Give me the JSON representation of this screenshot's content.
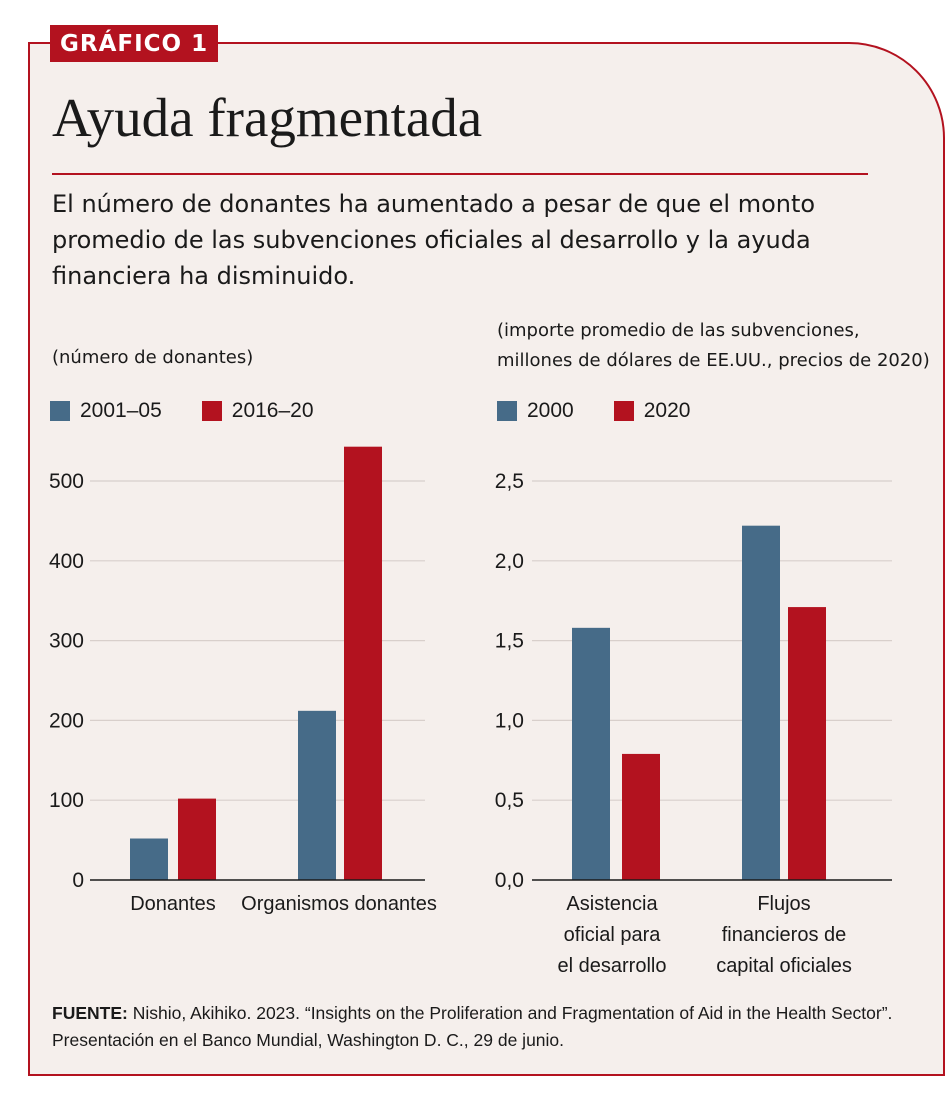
{
  "header": {
    "badge": "GRÁFICO 1",
    "title": "Ayuda fragmentada",
    "subtitle": "El número de donantes ha aumentado a pesar de que el monto promedio de las subvenciones oficiales al desarrollo y la ayuda financiera ha disminuido."
  },
  "colors": {
    "accent": "#b3121f",
    "series_a": "#466b88",
    "series_b": "#b3121f",
    "background": "#f5efec"
  },
  "chart_data": [
    {
      "type": "bar",
      "unit_note": "(número de donantes)",
      "categories": [
        [
          "Donantes"
        ],
        [
          "Organismos donantes"
        ]
      ],
      "series": [
        {
          "name": "2001–05",
          "color": "#466b88",
          "values": [
            52,
            212
          ]
        },
        {
          "name": "2016–20",
          "color": "#b3121f",
          "values": [
            102,
            543
          ]
        }
      ],
      "yticks": [
        "0",
        "100",
        "200",
        "300",
        "400",
        "500"
      ],
      "ylim": [
        0,
        550
      ],
      "grid": true,
      "legend": "top-left"
    },
    {
      "type": "bar",
      "unit_note": [
        "(importe promedio de las subvenciones,",
        "millones de dólares de EE.UU., precios de 2020)"
      ],
      "categories": [
        [
          "Asistencia",
          "oficial para",
          "el desarrollo"
        ],
        [
          "Flujos",
          "financieros de",
          "capital oficiales"
        ]
      ],
      "series": [
        {
          "name": "2000",
          "color": "#466b88",
          "values": [
            1.58,
            2.22
          ]
        },
        {
          "name": "2020",
          "color": "#b3121f",
          "values": [
            0.79,
            1.71
          ]
        }
      ],
      "yticks": [
        "0,0",
        "0,5",
        "1,0",
        "1,5",
        "2,0",
        "2,5"
      ],
      "ylim": [
        0,
        2.75
      ],
      "grid": true,
      "legend": "top-left"
    }
  ],
  "source": {
    "label": "FUENTE:",
    "text": " Nishio, Akihiko. 2023. “Insights on the Proliferation and Fragmentation of Aid in the Health Sector”. Presentación en el Banco Mundial, Washington D. C., 29 de junio."
  }
}
